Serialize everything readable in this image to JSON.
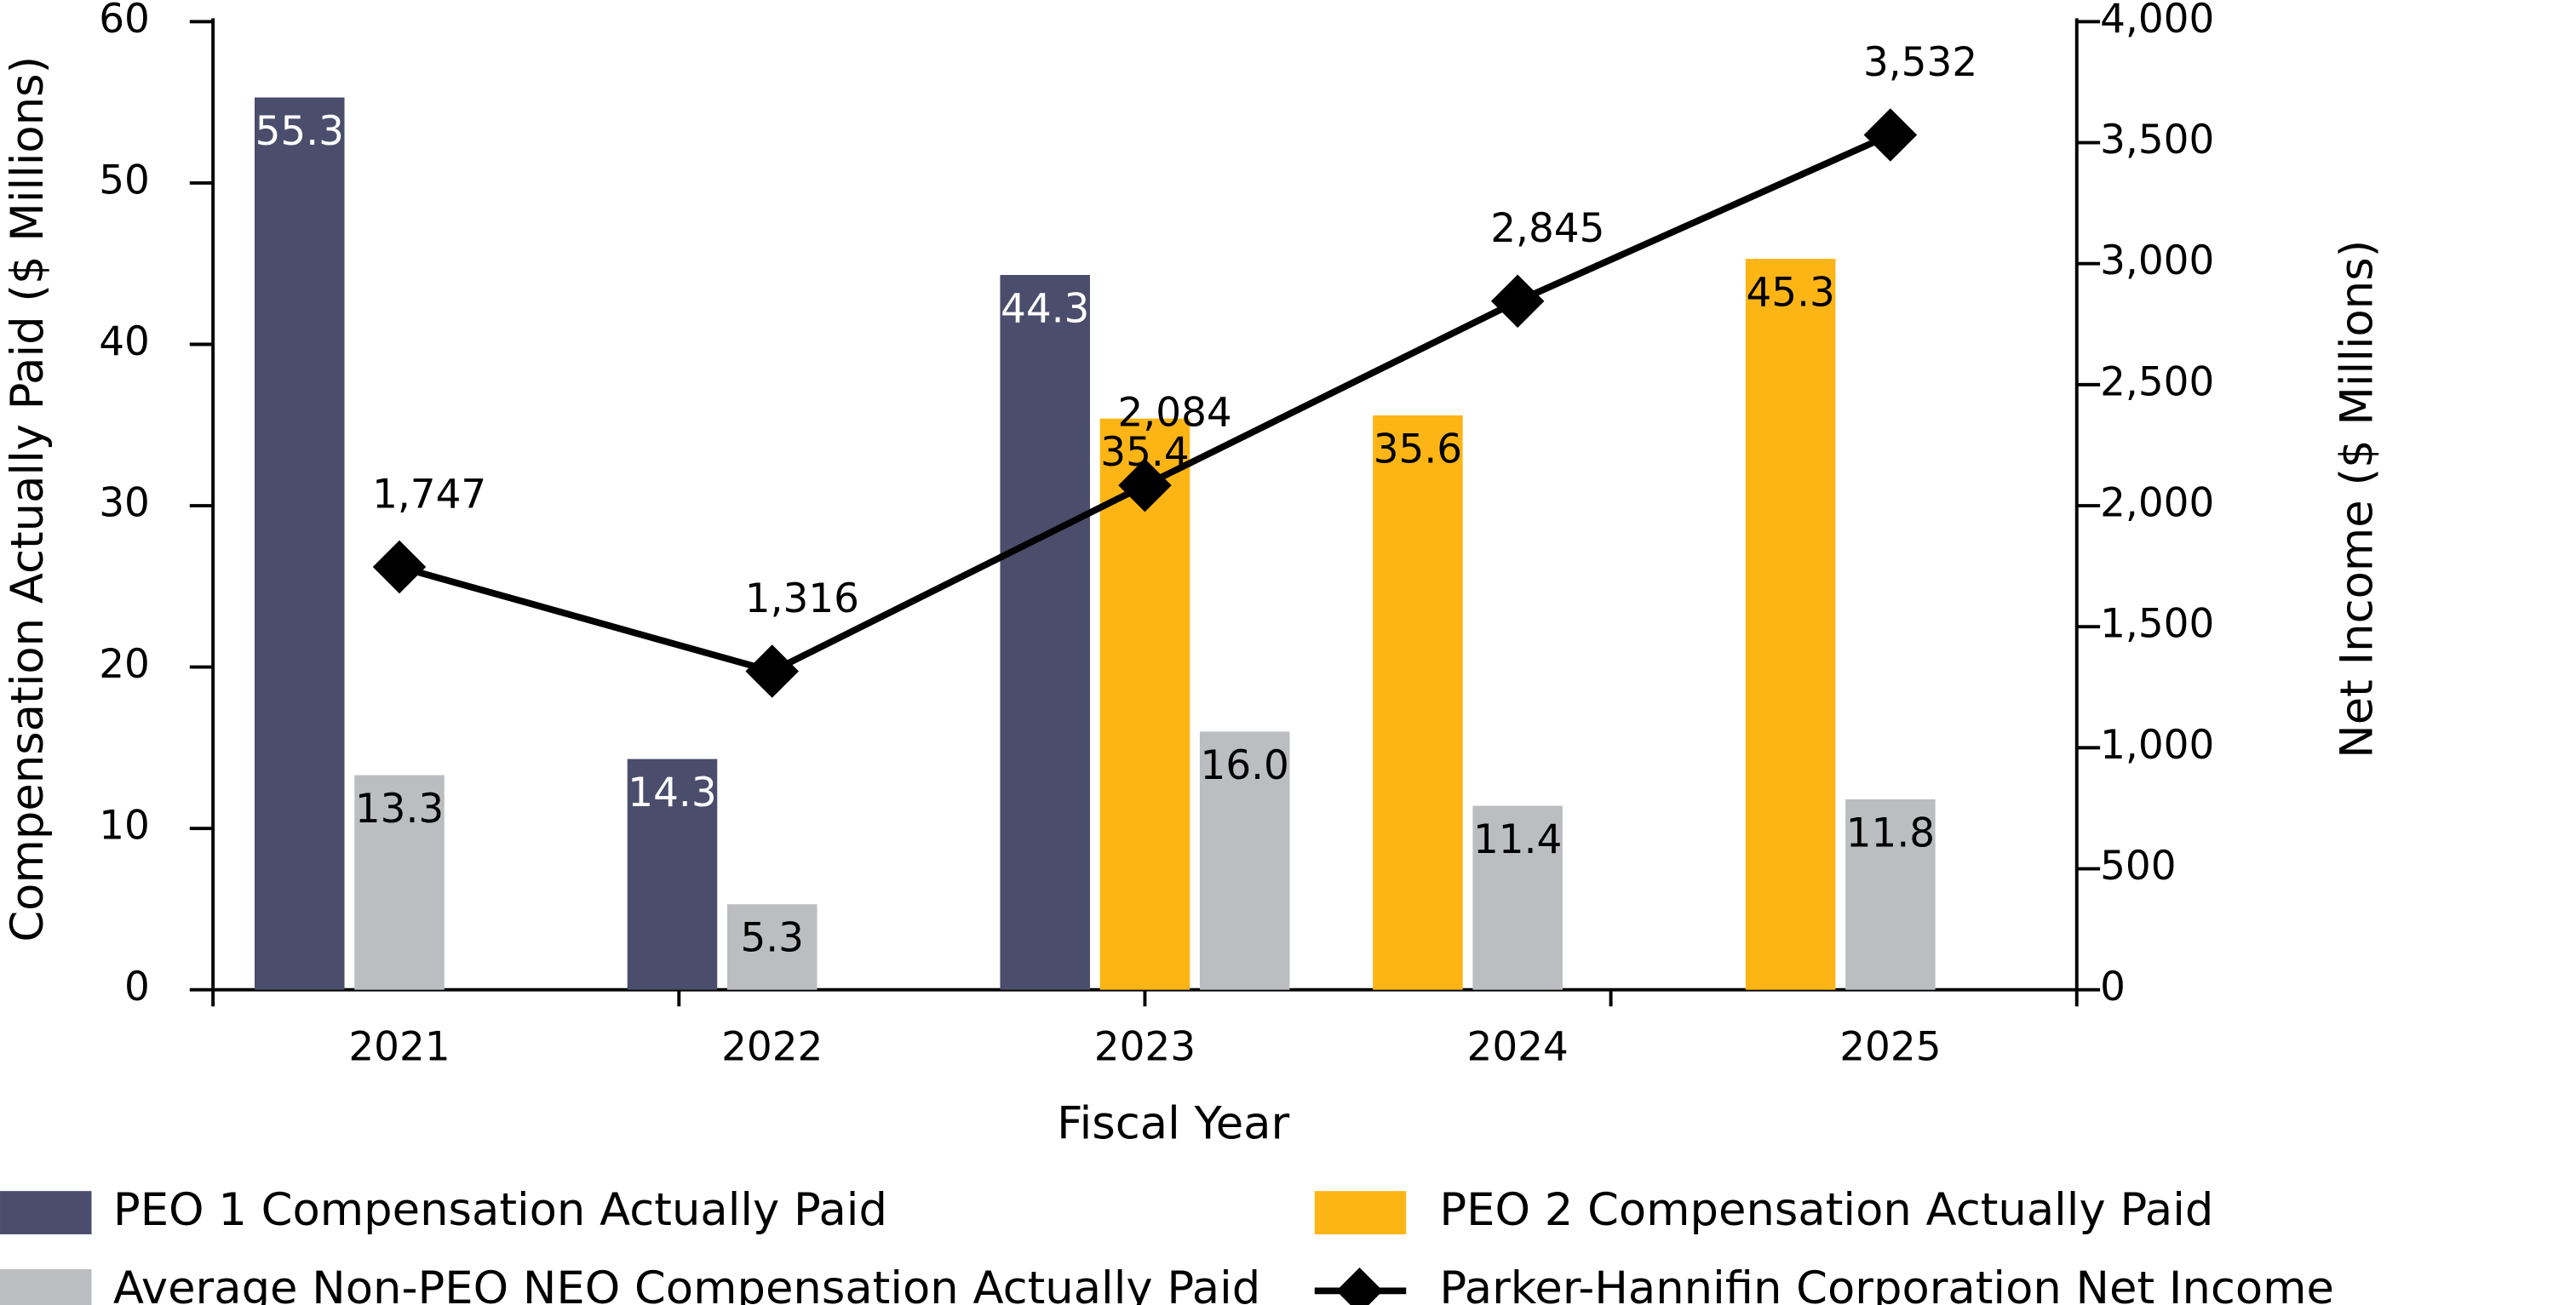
{
  "chart_data": {
    "type": "bar",
    "x_label": "Fiscal Year",
    "y_label": "Compensation Actually Paid ($ Millions)",
    "y2_label": "Net Income ($ Millions)",
    "categories": [
      "2021",
      "2022",
      "2023",
      "2024",
      "2025"
    ],
    "series": [
      {
        "name": "PEO 1 Compensation Actually Paid",
        "type": "bar",
        "color": "#4a4e6c",
        "label_color": "#ffffff",
        "values": [
          55.3,
          14.3,
          44.3,
          null,
          null
        ]
      },
      {
        "name": "PEO 2 Compensation Actually Paid",
        "type": "bar",
        "color": "#fdb515",
        "label_color": "#000000",
        "values": [
          null,
          null,
          35.4,
          35.6,
          45.3
        ]
      },
      {
        "name": "Average Non-PEO NEO Compensation Actually Paid",
        "type": "bar",
        "color": "#bcbdc0",
        "label_color": "#000000",
        "values": [
          13.3,
          5.3,
          16,
          11.4,
          11.8
        ],
        "value_labels": [
          "13.3",
          "5.3",
          "16.0",
          "11.4",
          "11.8"
        ]
      },
      {
        "name": "Parker-Hannifin Corporation Net Income",
        "type": "line",
        "axis": "y2",
        "color": "#000000",
        "values": [
          1747,
          1316,
          2084,
          2845,
          3532
        ],
        "value_labels": [
          "1,747",
          "1,316",
          "2,084",
          "2,845",
          "3,532"
        ]
      }
    ],
    "legend_order": [
      0,
      1,
      2,
      3
    ],
    "ylim": [
      0,
      60
    ],
    "yticks": [
      0,
      10,
      20,
      30,
      40,
      50,
      60
    ],
    "y2lim": [
      0,
      4000
    ],
    "y2ticks": [
      0,
      500,
      {
        "value": 1000,
        "label": "1,000"
      },
      {
        "value": 1500,
        "label": "1,500"
      },
      {
        "value": 2000,
        "label": "2,000"
      },
      {
        "value": 2500,
        "label": "2,500"
      },
      {
        "value": 3000,
        "label": "3,000"
      },
      {
        "value": 3500,
        "label": "3,500"
      },
      {
        "value": 4000,
        "label": "4,000"
      }
    ],
    "grid": false
  }
}
